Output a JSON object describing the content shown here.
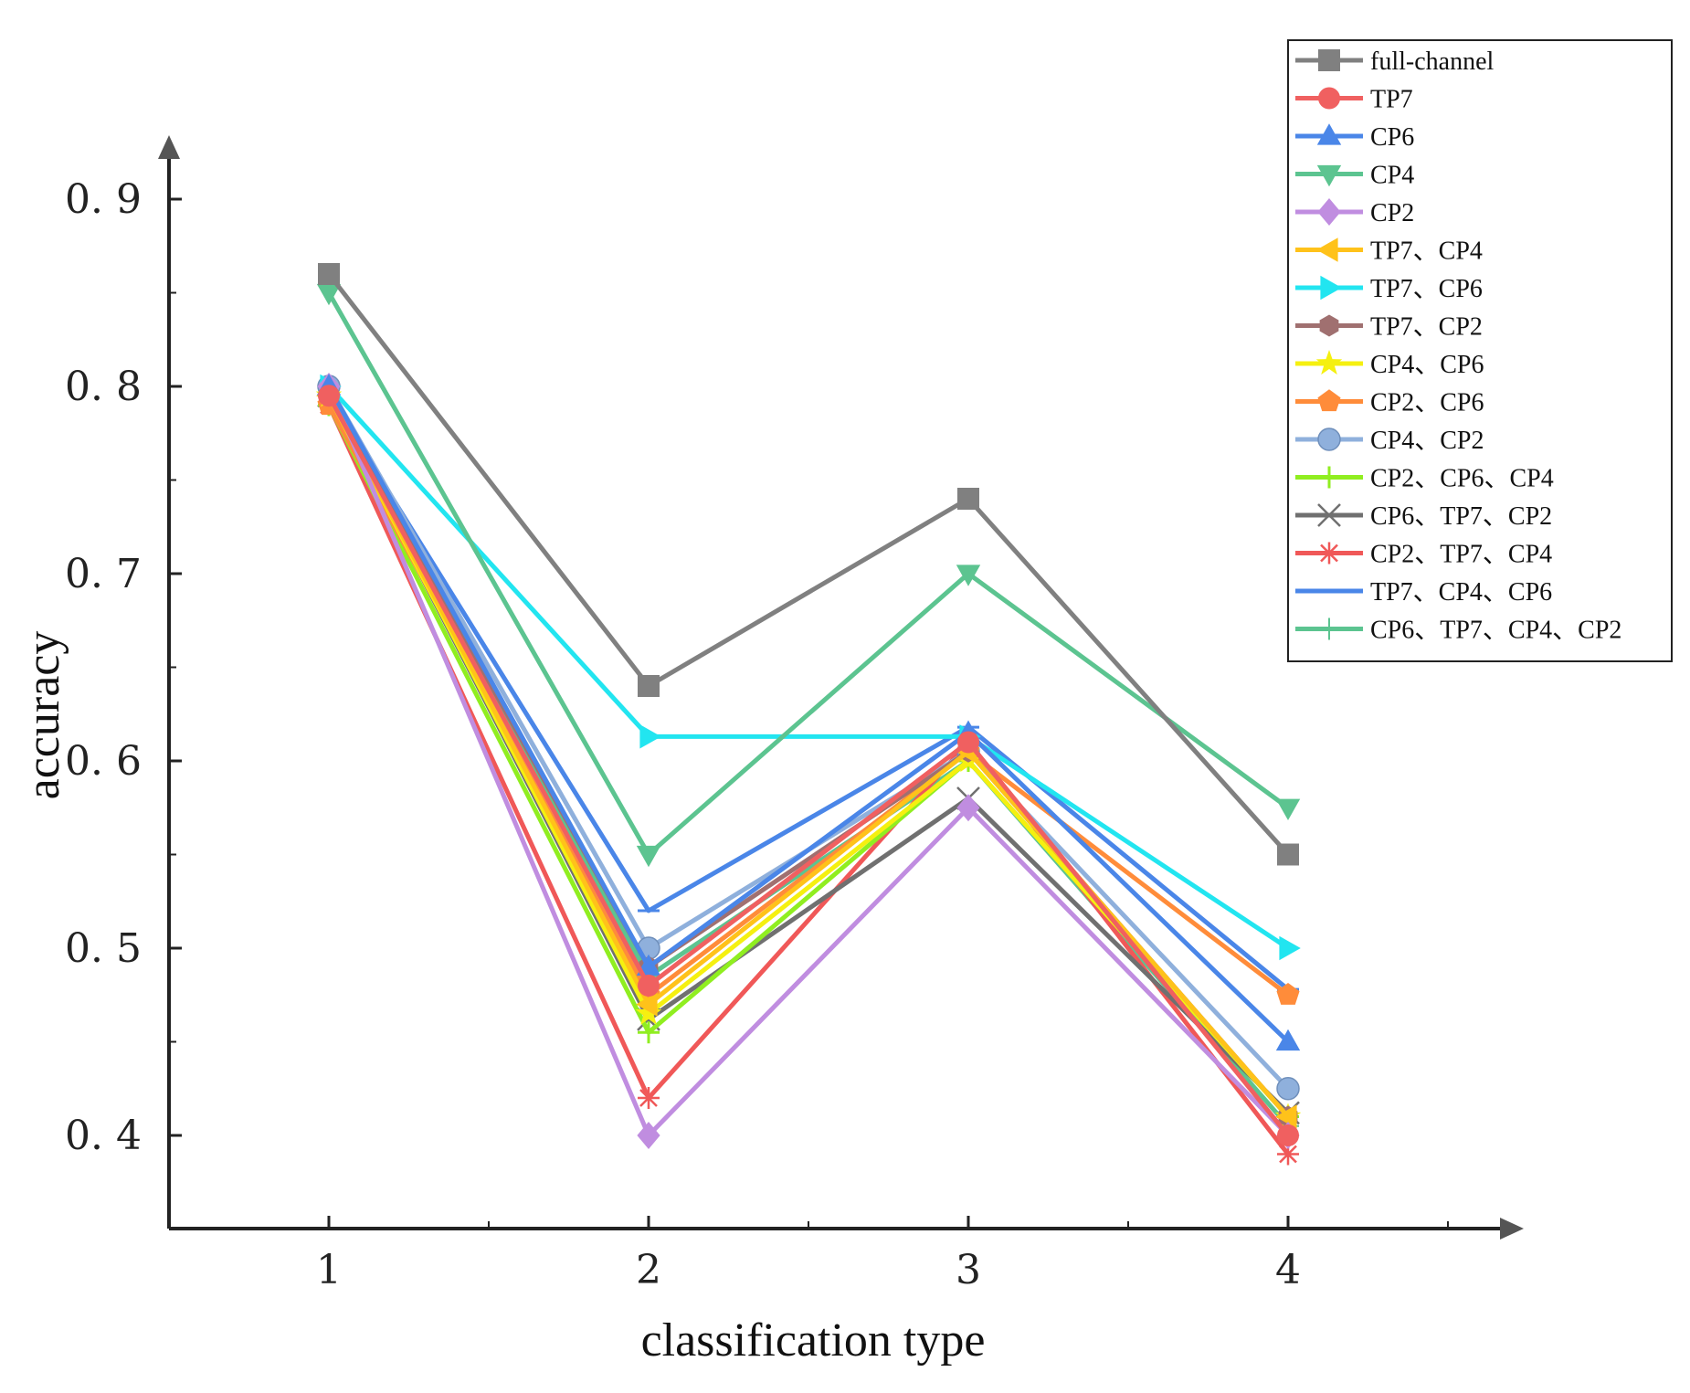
{
  "chart_data": {
    "type": "line",
    "title": "",
    "xlabel": "classification type",
    "ylabel": "accuracy",
    "categories": [
      "1",
      "2",
      "3",
      "4"
    ],
    "x": [
      1,
      2,
      3,
      4
    ],
    "xlim": [
      0.5,
      4.5
    ],
    "ylim": [
      0.35,
      0.95
    ],
    "yticks": [
      0.4,
      0.5,
      0.6,
      0.7,
      0.8,
      0.9
    ],
    "ytick_labels": [
      "0. 4",
      "0. 5",
      "0. 6",
      "0. 7",
      "0. 8",
      "0. 9"
    ],
    "legend_position": "top-right",
    "series": [
      {
        "name": "full-channel",
        "color": "#808080",
        "marker": "square",
        "values": [
          0.86,
          0.64,
          0.74,
          0.55
        ]
      },
      {
        "name": "TP7",
        "color": "#f06060",
        "marker": "circle",
        "values": [
          0.795,
          0.48,
          0.61,
          0.4
        ]
      },
      {
        "name": "CP6",
        "color": "#4a86e8",
        "marker": "triangle-up",
        "values": [
          0.8,
          0.49,
          0.615,
          0.45
        ]
      },
      {
        "name": "CP4",
        "color": "#5cc490",
        "marker": "triangle-down",
        "values": [
          0.85,
          0.55,
          0.7,
          0.575
        ]
      },
      {
        "name": "CP2",
        "color": "#c08de0",
        "marker": "diamond",
        "values": [
          0.8,
          0.4,
          0.575,
          0.4
        ]
      },
      {
        "name": "TP7、CP4",
        "color": "#ffc21a",
        "marker": "triangle-left",
        "values": [
          0.795,
          0.47,
          0.605,
          0.41
        ]
      },
      {
        "name": "TP7、CP6",
        "color": "#22e5f0",
        "marker": "triangle-right",
        "values": [
          0.8,
          0.613,
          0.613,
          0.5
        ]
      },
      {
        "name": "TP7、CP2",
        "color": "#a07070",
        "marker": "hexagon",
        "values": [
          0.795,
          0.49,
          0.605,
          0.41
        ]
      },
      {
        "name": "CP4、CP6",
        "color": "#f5f010",
        "marker": "star",
        "values": [
          0.795,
          0.465,
          0.6,
          0.41
        ]
      },
      {
        "name": "CP2、CP6",
        "color": "#ff8c3a",
        "marker": "pentagon",
        "values": [
          0.79,
          0.475,
          0.605,
          0.475
        ]
      },
      {
        "name": "CP4、CP2",
        "color": "#8fb0dc",
        "marker": "sphere",
        "values": [
          0.8,
          0.5,
          0.605,
          0.425
        ]
      },
      {
        "name": "CP2、CP6、CP4",
        "color": "#90ee20",
        "marker": "plus",
        "values": [
          0.79,
          0.455,
          0.6,
          0.41
        ]
      },
      {
        "name": "CP6、TP7、CP2",
        "color": "#707070",
        "marker": "x",
        "values": [
          0.795,
          0.462,
          0.58,
          0.412
        ]
      },
      {
        "name": "CP2、TP7、CP4",
        "color": "#f05858",
        "marker": "asterisk",
        "values": [
          0.79,
          0.42,
          0.61,
          0.39
        ]
      },
      {
        "name": "TP7、CP4、CP6",
        "color": "#4a86e8",
        "marker": "dash",
        "values": [
          0.795,
          0.52,
          0.618,
          0.478
        ]
      },
      {
        "name": "CP6、TP7、CP4、CP2",
        "color": "#5cc490",
        "marker": "thin-plus",
        "values": [
          0.795,
          0.485,
          0.6,
          0.405
        ]
      }
    ]
  }
}
